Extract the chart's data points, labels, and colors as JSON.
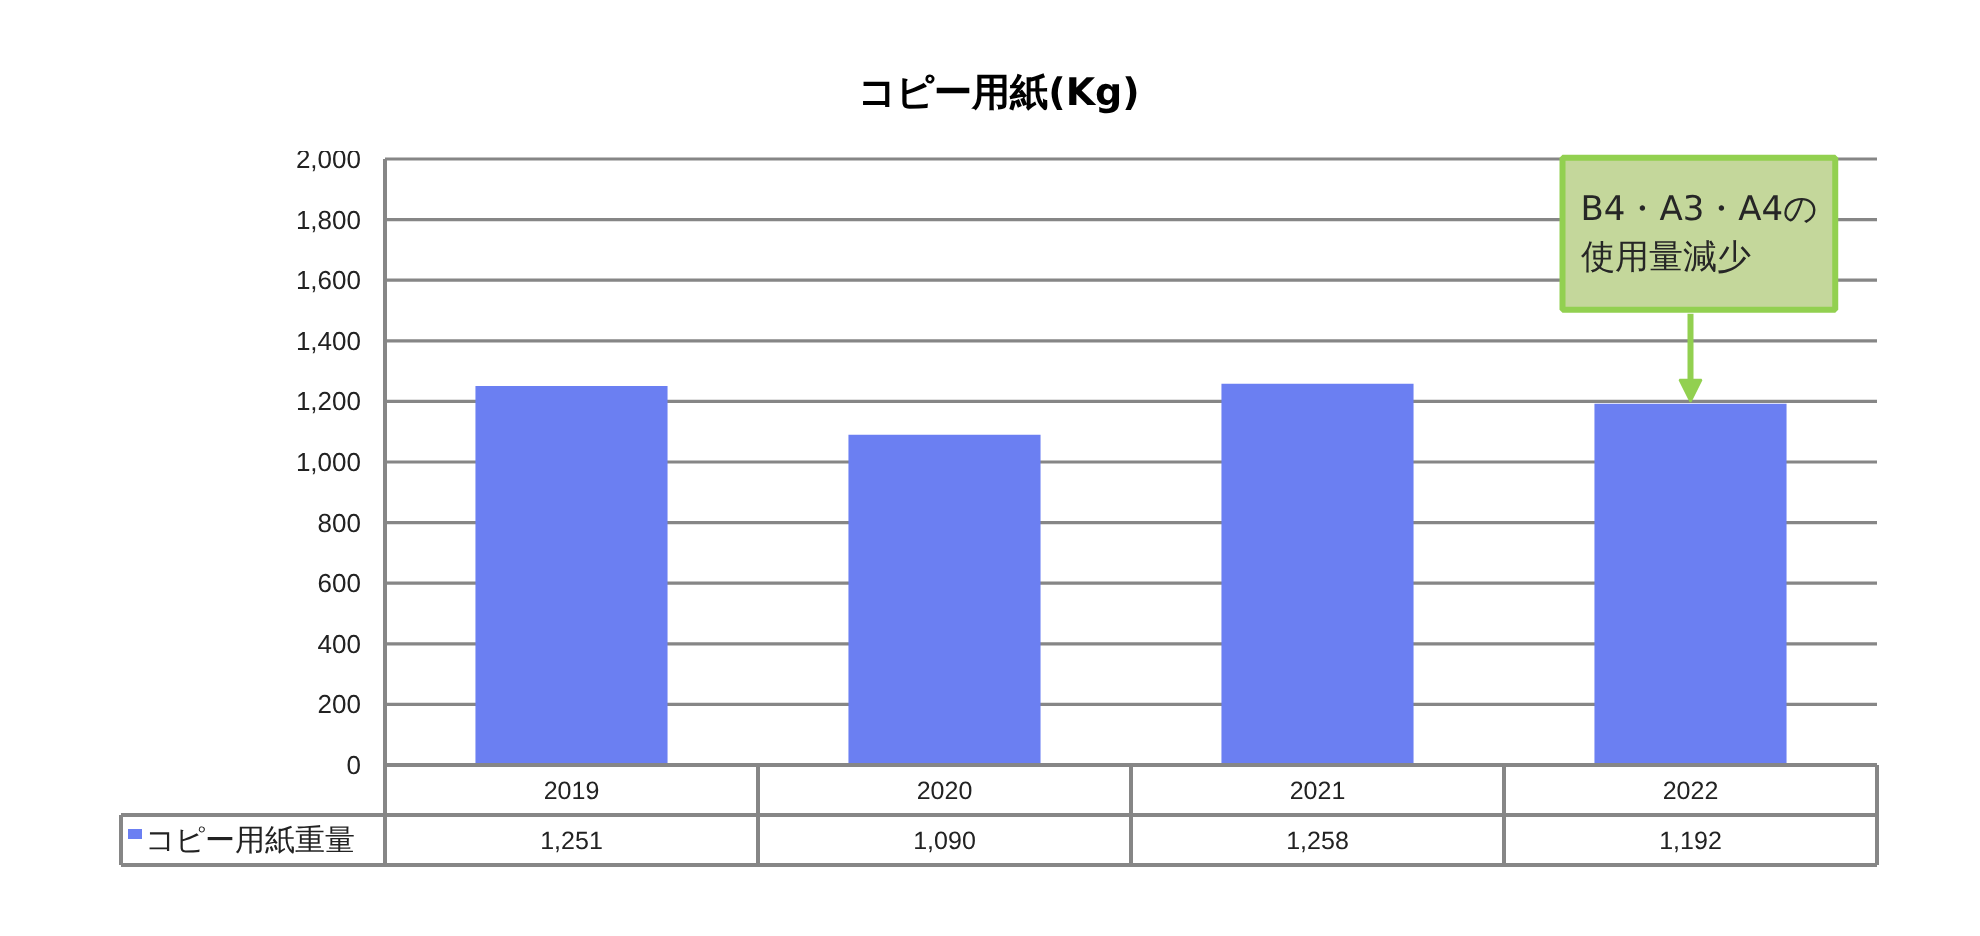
{
  "chart_data": {
    "type": "bar",
    "title": "コピー用紙(Kg)",
    "categories": [
      "2019",
      "2020",
      "2021",
      "2022"
    ],
    "series": [
      {
        "name": "コピー用紙重量",
        "color": "#6b7ff2",
        "values": [
          1251,
          1090,
          1258,
          1192
        ],
        "value_labels": [
          "1,251",
          "1,090",
          "1,258",
          "1,192"
        ]
      }
    ],
    "ylim": [
      0,
      2000
    ],
    "yticks": [
      0,
      200,
      400,
      600,
      800,
      {
        "value": 1000,
        "label": "1,000"
      },
      {
        "value": 1200,
        "label": "1,200"
      },
      {
        "value": 1400,
        "label": "1,400"
      },
      {
        "value": 1600,
        "label": "1,600"
      },
      {
        "value": 1800,
        "label": "1,800"
      },
      {
        "value": 2000,
        "label": "2,000"
      }
    ],
    "grid": "y",
    "legend": "bottom left",
    "annotations": [
      {
        "text": "B4・A3・A4の使用量減少",
        "x": "2022",
        "y": 1192
      }
    ]
  }
}
